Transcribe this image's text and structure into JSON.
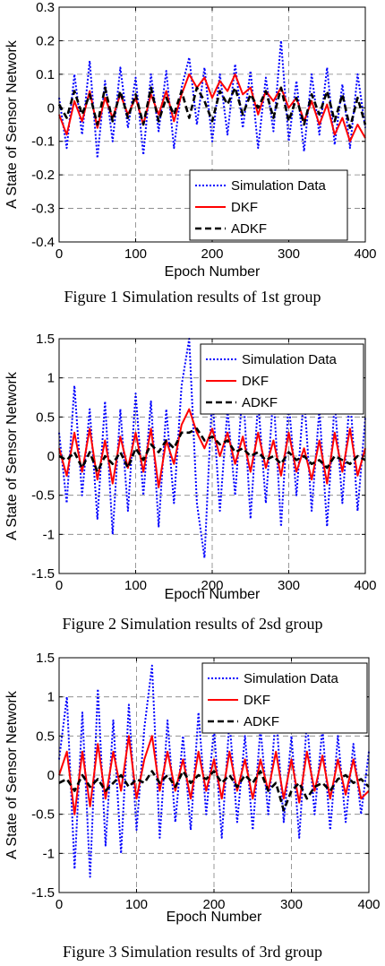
{
  "colors": {
    "simulation": "#0000ff",
    "dkf": "#ff0000",
    "adkf": "#000000",
    "grid": "#808080"
  },
  "chart_data": [
    {
      "type": "line",
      "caption": "Figure 1 Simulation results of 1st group",
      "xlabel": "Epoch Number",
      "ylabel": "A State of Sensor Network",
      "xlim": [
        0,
        400
      ],
      "ylim": [
        -0.4,
        0.3
      ],
      "xticks": [
        "0",
        "100",
        "200",
        "300",
        "400"
      ],
      "yticks": [
        "-0.4",
        "-0.3",
        "-0.2",
        "-0.1",
        "0",
        "0.1",
        "0.2",
        "0.3"
      ],
      "grid": true,
      "legend_position": "bottom-right",
      "series": [
        {
          "name": "Simulation Data",
          "style": "dotted",
          "x": [
            0,
            10,
            20,
            30,
            40,
            50,
            60,
            70,
            80,
            90,
            100,
            110,
            120,
            130,
            140,
            150,
            160,
            170,
            180,
            190,
            200,
            210,
            220,
            230,
            240,
            250,
            260,
            270,
            280,
            290,
            300,
            310,
            320,
            330,
            340,
            350,
            360,
            370,
            380,
            390,
            400
          ],
          "values": [
            0.03,
            -0.12,
            0.1,
            -0.08,
            0.14,
            -0.15,
            0.08,
            -0.1,
            0.12,
            -0.06,
            0.09,
            -0.14,
            0.1,
            -0.07,
            0.11,
            -0.12,
            0.06,
            0.15,
            -0.05,
            0.12,
            -0.1,
            0.1,
            -0.08,
            0.13,
            -0.06,
            0.11,
            -0.12,
            0.09,
            -0.07,
            0.2,
            -0.1,
            0.08,
            -0.13,
            0.1,
            -0.08,
            0.12,
            -0.11,
            0.07,
            -0.12,
            0.1,
            -0.06
          ]
        },
        {
          "name": "DKF",
          "style": "solid",
          "x": [
            0,
            10,
            20,
            30,
            40,
            50,
            60,
            70,
            80,
            90,
            100,
            110,
            120,
            130,
            140,
            150,
            160,
            170,
            180,
            190,
            200,
            210,
            220,
            230,
            240,
            250,
            260,
            270,
            280,
            290,
            300,
            310,
            320,
            330,
            340,
            350,
            360,
            370,
            380,
            390,
            400
          ],
          "values": [
            -0.02,
            -0.08,
            0.02,
            -0.04,
            0.05,
            -0.06,
            0.03,
            -0.03,
            0.04,
            -0.02,
            0.03,
            -0.05,
            0.04,
            -0.02,
            0.05,
            -0.04,
            0.04,
            0.1,
            0.06,
            0.09,
            0.03,
            0.08,
            0.05,
            0.1,
            0.04,
            0.06,
            -0.02,
            0.05,
            0.02,
            0.06,
            0.0,
            0.03,
            -0.04,
            0.02,
            -0.05,
            0.01,
            -0.08,
            -0.03,
            -0.1,
            -0.05,
            -0.09
          ]
        },
        {
          "name": "ADKF",
          "style": "dashed",
          "x": [
            0,
            10,
            20,
            30,
            40,
            50,
            60,
            70,
            80,
            90,
            100,
            110,
            120,
            130,
            140,
            150,
            160,
            170,
            180,
            190,
            200,
            210,
            220,
            230,
            240,
            250,
            260,
            270,
            280,
            290,
            300,
            310,
            320,
            330,
            340,
            350,
            360,
            370,
            380,
            390,
            400
          ],
          "values": [
            0.01,
            -0.03,
            0.05,
            -0.02,
            0.04,
            -0.05,
            0.06,
            -0.04,
            0.05,
            -0.03,
            0.04,
            -0.05,
            0.06,
            -0.04,
            0.03,
            -0.02,
            0.05,
            -0.03,
            0.06,
            0.02,
            -0.04,
            0.05,
            0.01,
            0.06,
            -0.02,
            0.04,
            0.0,
            0.05,
            -0.03,
            0.06,
            -0.04,
            0.03,
            -0.05,
            0.04,
            -0.02,
            0.05,
            -0.04,
            0.04,
            -0.06,
            0.03,
            -0.05
          ]
        }
      ]
    },
    {
      "type": "line",
      "caption": "Figure 2 Simulation results of 2sd group",
      "xlabel": "Epoch Number",
      "ylabel": "A State of Sensor Network",
      "xlim": [
        0,
        400
      ],
      "ylim": [
        -1.5,
        1.5
      ],
      "xticks": [
        "0",
        "100",
        "200",
        "300",
        "400"
      ],
      "yticks": [
        "-1.5",
        "-1",
        "-0.5",
        "0",
        "0.5",
        "1",
        "1.5"
      ],
      "grid": true,
      "legend_position": "top-right",
      "series": [
        {
          "name": "Simulation Data",
          "style": "dotted",
          "x": [
            0,
            10,
            20,
            30,
            40,
            50,
            60,
            70,
            80,
            90,
            100,
            110,
            120,
            130,
            140,
            150,
            160,
            170,
            180,
            190,
            200,
            210,
            220,
            230,
            240,
            250,
            260,
            270,
            280,
            290,
            300,
            310,
            320,
            330,
            340,
            350,
            360,
            370,
            380,
            390,
            400
          ],
          "values": [
            0.3,
            -0.6,
            0.9,
            -0.5,
            0.6,
            -0.8,
            0.7,
            -1.0,
            0.6,
            -0.7,
            0.8,
            -0.5,
            0.7,
            -0.9,
            0.6,
            -0.6,
            0.9,
            1.5,
            -0.6,
            -1.3,
            0.8,
            -0.7,
            0.6,
            -0.5,
            0.9,
            -0.8,
            0.7,
            -0.6,
            0.8,
            -0.9,
            0.7,
            -0.5,
            0.8,
            -0.7,
            0.6,
            -0.9,
            0.7,
            -0.6,
            0.8,
            -0.7,
            0.5
          ]
        },
        {
          "name": "DKF",
          "style": "solid",
          "x": [
            0,
            10,
            20,
            30,
            40,
            50,
            60,
            70,
            80,
            90,
            100,
            110,
            120,
            130,
            140,
            150,
            160,
            170,
            180,
            190,
            200,
            210,
            220,
            230,
            240,
            250,
            260,
            270,
            280,
            290,
            300,
            310,
            320,
            330,
            340,
            350,
            360,
            370,
            380,
            390,
            400
          ],
          "values": [
            0.1,
            -0.25,
            0.3,
            -0.2,
            0.35,
            -0.3,
            0.2,
            -0.35,
            0.25,
            -0.15,
            0.3,
            -0.2,
            0.35,
            -0.4,
            0.2,
            -0.1,
            0.4,
            0.6,
            0.3,
            0.1,
            0.35,
            0.0,
            0.3,
            -0.1,
            0.25,
            -0.2,
            0.3,
            -0.15,
            0.2,
            -0.25,
            0.3,
            -0.2,
            0.1,
            -0.3,
            0.2,
            -0.35,
            0.3,
            -0.2,
            0.35,
            -0.25,
            0.1
          ]
        },
        {
          "name": "ADKF",
          "style": "dashed",
          "x": [
            0,
            10,
            20,
            30,
            40,
            50,
            60,
            70,
            80,
            90,
            100,
            110,
            120,
            130,
            140,
            150,
            160,
            170,
            180,
            190,
            200,
            210,
            220,
            230,
            240,
            250,
            260,
            270,
            280,
            290,
            300,
            310,
            320,
            330,
            340,
            350,
            360,
            370,
            380,
            390,
            400
          ],
          "values": [
            0.0,
            -0.05,
            0.05,
            -0.15,
            0.05,
            -0.2,
            0.0,
            -0.1,
            0.05,
            -0.15,
            0.1,
            -0.05,
            0.15,
            0.05,
            0.2,
            0.1,
            0.3,
            0.3,
            0.35,
            0.2,
            0.25,
            0.15,
            0.2,
            0.05,
            0.1,
            0.0,
            0.05,
            -0.05,
            0.0,
            -0.1,
            0.05,
            -0.05,
            0.0,
            -0.1,
            -0.05,
            -0.15,
            0.0,
            -0.05,
            -0.1,
            0.0,
            -0.05
          ]
        }
      ]
    },
    {
      "type": "line",
      "caption": "Figure 3 Simulation results of 3rd group",
      "xlabel": "Epoch Number",
      "ylabel": "A State of Sensor Network",
      "xlim": [
        0,
        400
      ],
      "ylim": [
        -1.5,
        1.5
      ],
      "xticks": [
        "0",
        "100",
        "200",
        "300",
        "400"
      ],
      "yticks": [
        "-1.5",
        "-1",
        "-0.5",
        "0",
        "0.5",
        "1",
        "1.5"
      ],
      "grid": true,
      "legend_position": "top-right",
      "series": [
        {
          "name": "Simulation Data",
          "style": "dotted",
          "x": [
            0,
            10,
            20,
            30,
            40,
            50,
            60,
            70,
            80,
            90,
            100,
            110,
            120,
            130,
            140,
            150,
            160,
            170,
            180,
            190,
            200,
            210,
            220,
            230,
            240,
            250,
            260,
            270,
            280,
            290,
            300,
            310,
            320,
            330,
            340,
            350,
            360,
            370,
            380,
            390,
            400
          ],
          "values": [
            0.2,
            1.0,
            -1.2,
            0.8,
            -1.3,
            1.1,
            -0.9,
            0.7,
            -1.0,
            0.9,
            -0.7,
            0.6,
            1.4,
            -0.8,
            0.7,
            -0.6,
            0.5,
            -0.7,
            0.8,
            -0.5,
            0.6,
            -0.8,
            0.7,
            -0.6,
            0.5,
            -0.7,
            0.6,
            -0.5,
            0.8,
            -0.6,
            0.5,
            -0.8,
            0.7,
            -0.5,
            0.6,
            -0.7,
            0.5,
            -0.6,
            0.4,
            -0.5,
            0.3
          ]
        },
        {
          "name": "DKF",
          "style": "solid",
          "x": [
            0,
            10,
            20,
            30,
            40,
            50,
            60,
            70,
            80,
            90,
            100,
            110,
            120,
            130,
            140,
            150,
            160,
            170,
            180,
            190,
            200,
            210,
            220,
            230,
            240,
            250,
            260,
            270,
            280,
            290,
            300,
            310,
            320,
            330,
            340,
            350,
            360,
            370,
            380,
            390,
            400
          ],
          "values": [
            0.0,
            0.3,
            -0.5,
            0.3,
            -0.4,
            0.4,
            -0.3,
            0.3,
            -0.2,
            0.5,
            -0.3,
            0.2,
            0.5,
            -0.2,
            0.3,
            -0.2,
            0.2,
            -0.3,
            0.3,
            -0.2,
            0.2,
            -0.3,
            0.3,
            -0.2,
            0.2,
            -0.3,
            0.2,
            -0.2,
            0.3,
            -0.3,
            0.2,
            -0.35,
            0.3,
            -0.2,
            0.25,
            -0.3,
            0.2,
            -0.25,
            0.2,
            -0.3,
            -0.2
          ]
        },
        {
          "name": "ADKF",
          "style": "dashed",
          "x": [
            0,
            10,
            20,
            30,
            40,
            50,
            60,
            70,
            80,
            90,
            100,
            110,
            120,
            130,
            140,
            150,
            160,
            170,
            180,
            190,
            200,
            210,
            220,
            230,
            240,
            250,
            260,
            270,
            280,
            290,
            300,
            310,
            320,
            330,
            340,
            350,
            360,
            370,
            380,
            390,
            400
          ],
          "values": [
            -0.1,
            -0.05,
            -0.2,
            0.0,
            -0.15,
            -0.05,
            -0.2,
            -0.1,
            0.0,
            -0.15,
            -0.05,
            -0.1,
            0.05,
            -0.1,
            0.0,
            -0.15,
            0.05,
            -0.1,
            0.0,
            -0.05,
            0.05,
            -0.1,
            0.0,
            -0.15,
            0.0,
            -0.1,
            0.05,
            -0.2,
            -0.1,
            -0.45,
            -0.2,
            -0.1,
            -0.3,
            -0.15,
            -0.1,
            -0.2,
            -0.05,
            0.0,
            -0.1,
            -0.05,
            -0.15
          ]
        }
      ]
    }
  ]
}
